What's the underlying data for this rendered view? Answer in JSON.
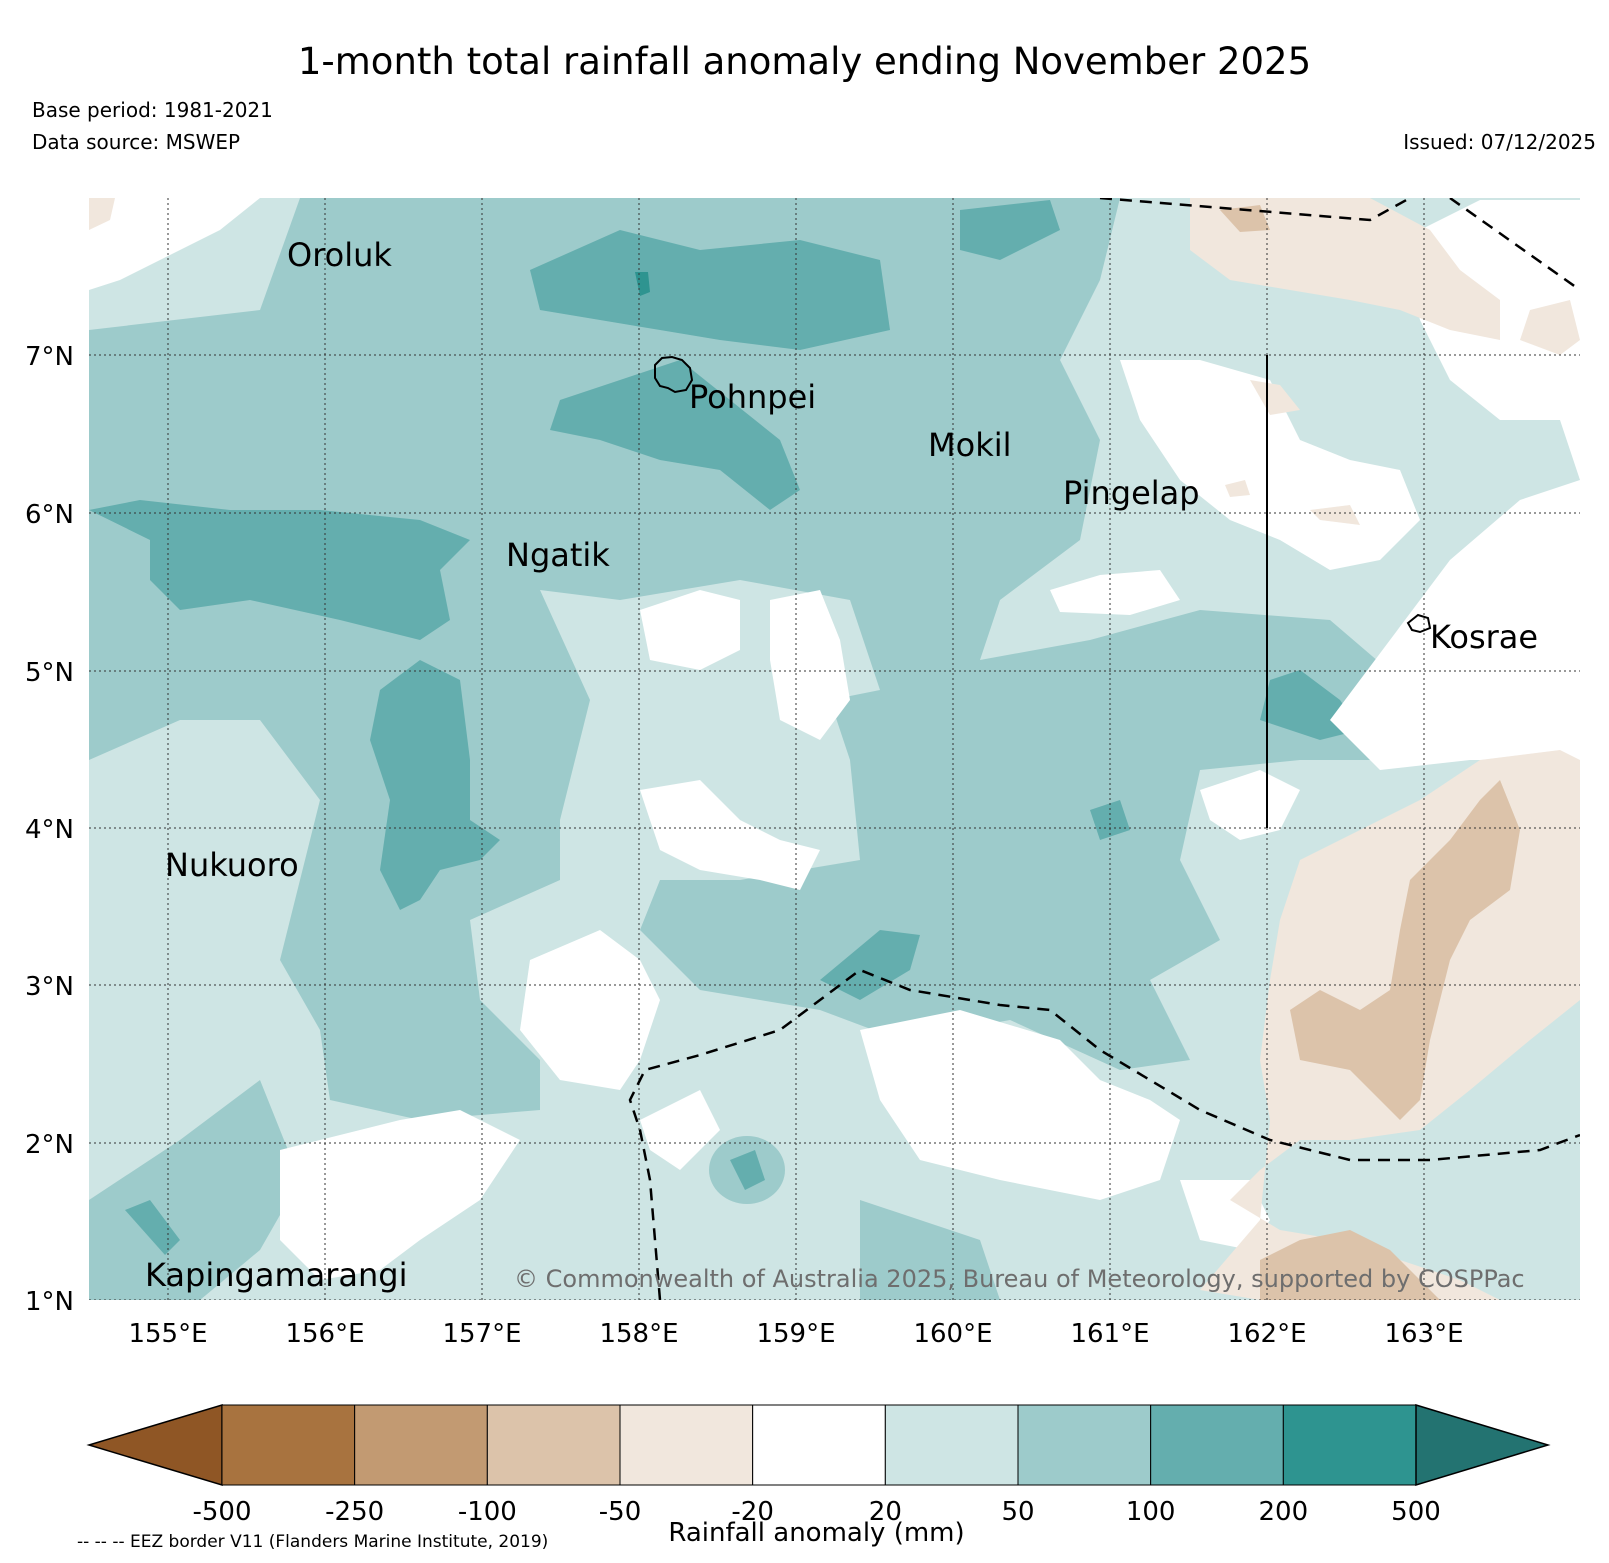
{
  "title": "1-month total rainfall anomaly ending November 2025",
  "base_period": "Base period: 1981-2021",
  "data_source": "Data source: MSWEP",
  "issued": "Issued: 07/12/2025",
  "copyright": "© Commonwealth of Australia 2025, Bureau of Meteorology, supported by COSPPac",
  "map": {
    "lat_labels": [
      "7°N",
      "6°N",
      "5°N",
      "4°N",
      "3°N",
      "2°N",
      "1°N"
    ],
    "lon_labels": [
      "155°E",
      "156°E",
      "157°E",
      "158°E",
      "159°E",
      "160°E",
      "161°E",
      "162°E",
      "163°E"
    ],
    "places": [
      "Oroluk",
      "Pohnpei",
      "Mokil",
      "Pingelap",
      "Ngatik",
      "Kosrae",
      "Nukuoro",
      "Kapingamarangi"
    ]
  },
  "legend": {
    "ticks": [
      "-500",
      "-250",
      "-100",
      "-50",
      "-20",
      "20",
      "50",
      "100",
      "200",
      "500"
    ],
    "colors": [
      "#8f5625",
      "#a8733f",
      "#c29a72",
      "#dcc3aa",
      "#f1e7dd",
      "#ffffff",
      "#cee5e4",
      "#9dcbcb",
      "#64aeae",
      "#2e9490",
      "#237371"
    ],
    "label": "Rainfall anomaly (mm)",
    "eez_note": "-- -- -- EEZ border V11 (Flanders Marine Institute, 2019)"
  }
}
